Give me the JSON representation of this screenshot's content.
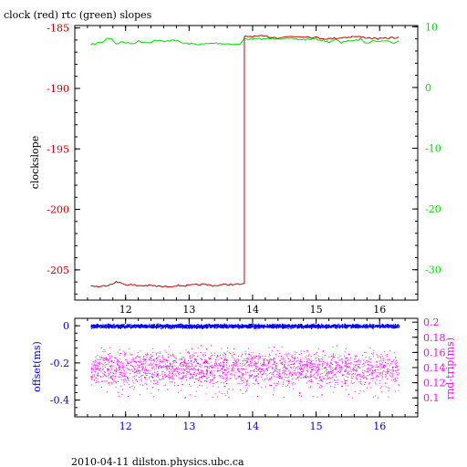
{
  "title": "clock (red) rtc (green) slopes",
  "footer": "2010-04-11 dilston.physics.ubc.ca",
  "colors": {
    "clock": "#cc0000",
    "rtc": "#00dd00",
    "offset": "#0000ee",
    "rtt": "#ff00ff",
    "axis": "#000000"
  },
  "chart_data": [
    {
      "type": "line",
      "xlim": [
        11.2,
        16.6
      ],
      "xticks": [
        "12",
        "13",
        "14",
        "15",
        "16"
      ],
      "ylabel": "clockslope",
      "ylim_left": [
        -207.5,
        -184.8
      ],
      "yticks_left": [
        "-185",
        "-190",
        "-195",
        "-200",
        "-205"
      ],
      "ylim_right": [
        -35,
        10.2
      ],
      "yticks_right": [
        "10",
        "0",
        "-10",
        "-20",
        "-30"
      ],
      "series": [
        {
          "name": "clock",
          "axis": "left",
          "x": [
            11.45,
            11.6,
            11.75,
            11.85,
            12.0,
            12.2,
            12.4,
            12.6,
            12.8,
            13.0,
            13.2,
            13.4,
            13.6,
            13.8,
            13.87,
            13.87,
            14.0,
            14.2,
            14.4,
            14.6,
            14.8,
            15.0,
            15.2,
            15.4,
            15.6,
            15.8,
            16.0,
            16.2,
            16.3
          ],
          "y": [
            -206.3,
            -206.4,
            -206.2,
            -206.0,
            -206.2,
            -206.3,
            -206.3,
            -206.4,
            -206.3,
            -206.3,
            -206.2,
            -206.3,
            -206.2,
            -206.2,
            -206.2,
            -185.7,
            -185.7,
            -185.7,
            -185.8,
            -185.7,
            -185.7,
            -185.8,
            -185.9,
            -185.8,
            -185.7,
            -185.8,
            -185.9,
            -185.8,
            -185.8
          ]
        },
        {
          "name": "rtc",
          "axis": "right",
          "x": [
            11.45,
            11.55,
            11.65,
            11.72,
            11.78,
            11.85,
            11.95,
            12.1,
            12.2,
            12.35,
            12.5,
            12.6,
            12.75,
            12.9,
            13.0,
            13.2,
            13.4,
            13.6,
            13.8,
            13.87,
            14.0,
            14.2,
            14.4,
            14.6,
            14.8,
            15.0,
            15.2,
            15.3,
            15.4,
            15.5,
            15.6,
            15.7,
            15.8,
            15.9,
            16.0,
            16.1,
            16.2,
            16.3
          ],
          "y": [
            7.0,
            7.3,
            7.5,
            8.2,
            8.0,
            7.2,
            7.5,
            7.2,
            7.6,
            7.4,
            7.8,
            7.5,
            7.9,
            7.3,
            7.2,
            7.1,
            7.3,
            7.2,
            7.1,
            8.0,
            8.0,
            8.0,
            8.1,
            8.0,
            7.9,
            8.0,
            7.5,
            7.9,
            7.3,
            7.8,
            7.6,
            8.0,
            7.2,
            7.9,
            7.5,
            7.8,
            7.3,
            7.6
          ]
        }
      ]
    },
    {
      "type": "scatter",
      "xlim": [
        11.2,
        16.6
      ],
      "xticks": [
        "12",
        "13",
        "14",
        "15",
        "16"
      ],
      "ylabel_left": "offset(ms)",
      "ylim_left": [
        -0.49,
        0.04
      ],
      "yticks_left": [
        "0",
        "-0.2",
        "-0.4"
      ],
      "ylabel_right": "rnd-trip(ms)",
      "ylim_right": [
        0.075,
        0.205
      ],
      "yticks_right": [
        "0.2",
        "0.18",
        "0.16",
        "0.14",
        "0.12",
        "0.1"
      ],
      "series": [
        {
          "name": "offset",
          "axis": "left",
          "x_range": [
            11.45,
            16.3
          ],
          "y_center": 0.0,
          "y_spread": 0.005
        },
        {
          "name": "rnd-trip",
          "axis": "right",
          "x_range": [
            11.45,
            16.3
          ],
          "y_center": 0.14,
          "y_spread": 0.012,
          "y_min_tail": 0.1
        }
      ]
    }
  ]
}
